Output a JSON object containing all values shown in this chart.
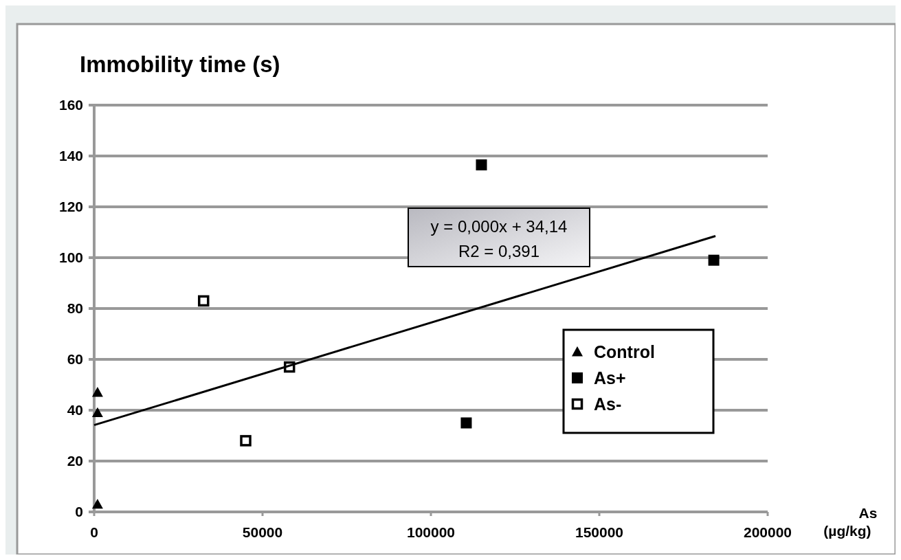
{
  "chart_data": {
    "type": "scatter",
    "ylabel": "Immobility time (s)",
    "xlabel": "As (µg/kg)",
    "xlim": [
      0,
      200000
    ],
    "xticks": [
      0,
      50000,
      100000,
      150000,
      200000
    ],
    "ylim": [
      0,
      160
    ],
    "yticks": [
      0,
      20,
      40,
      60,
      80,
      100,
      120,
      140,
      160
    ],
    "grid": "y",
    "legend": "right",
    "series": [
      {
        "name": "Control",
        "color": "#000000",
        "marker": "triangle",
        "x": [
          1000,
          1000,
          1000
        ],
        "values": [
          47,
          39,
          3
        ]
      },
      {
        "name": "As+",
        "color": "#000000",
        "marker": "square",
        "x": [
          115000,
          184000,
          110500
        ],
        "values": [
          136.5,
          99,
          35
        ]
      },
      {
        "name": "As-",
        "color": "#000000",
        "marker": "square-open",
        "x": [
          32500,
          45000,
          58000
        ],
        "values": [
          83,
          28,
          57
        ]
      },
      {
        "type": "line",
        "color": "#000000",
        "x": [
          0,
          184500
        ],
        "values": [
          34.14,
          108.5
        ]
      }
    ],
    "annotations": [
      "y = 0,000x + 34,14",
      "R2 = 0,391"
    ]
  }
}
